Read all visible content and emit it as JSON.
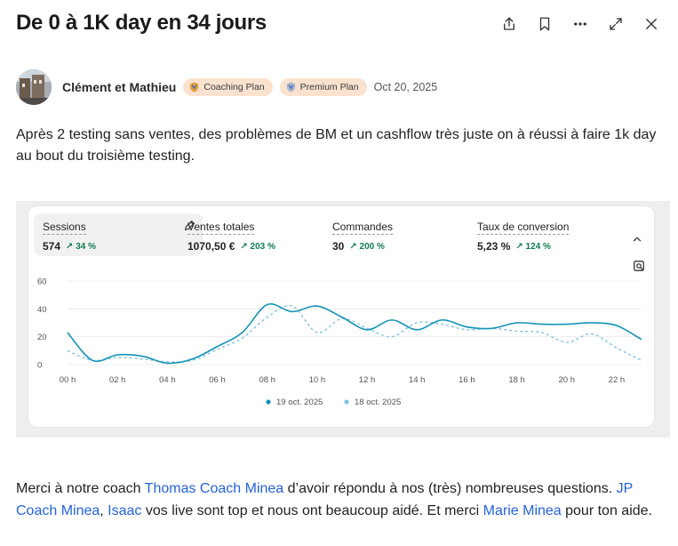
{
  "post": {
    "title": "De 0 à 1K day en 34 jours",
    "author": "Clément et Mathieu",
    "badges": [
      "Coaching Plan",
      "Premium Plan"
    ],
    "date": "Oct 20, 2025",
    "body": "Après 2 testing sans ventes, des problèmes de BM et un cashflow très juste on à réussi à faire 1k day au bout du troisième testing."
  },
  "actions": [
    "share-icon",
    "bookmark-icon",
    "more-icon",
    "expand-icon",
    "close-icon"
  ],
  "metrics": [
    {
      "label": "Sessions",
      "value": "574",
      "trend": "↗ 34 %"
    },
    {
      "label": "Ventes totales",
      "value": "1070,50 €",
      "trend": "↗ 203 %"
    },
    {
      "label": "Commandes",
      "value": "30",
      "trend": "↗ 200 %"
    },
    {
      "label": "Taux de conversion",
      "value": "5,23 %",
      "trend": "↗ 124 %"
    }
  ],
  "colors": {
    "accent": "#1592b8",
    "secondary": "#7fc3dc",
    "trend": "#107c4f",
    "badge": "#fbe2cf",
    "mention": "#2563d9"
  },
  "chart_data": {
    "type": "line",
    "ylim": [
      0,
      60
    ],
    "yticks": [
      "0",
      "20",
      "40",
      "60"
    ],
    "x": [
      "00 h",
      "01 h",
      "02 h",
      "03 h",
      "04 h",
      "05 h",
      "06 h",
      "07 h",
      "08 h",
      "09 h",
      "10 h",
      "11 h",
      "12 h",
      "13 h",
      "14 h",
      "15 h",
      "16 h",
      "17 h",
      "18 h",
      "19 h",
      "20 h",
      "21 h",
      "22 h",
      "23 h"
    ],
    "xtick_labels": [
      "00 h",
      "02 h",
      "04 h",
      "06 h",
      "08 h",
      "10 h",
      "12 h",
      "14 h",
      "16 h",
      "18 h",
      "20 h",
      "22 h"
    ],
    "grid": true,
    "legend_position": "bottom",
    "series": [
      {
        "name": "19 oct. 2025",
        "style": "solid",
        "values": [
          23,
          3,
          7,
          6,
          1,
          4,
          13,
          23,
          43,
          38,
          42,
          34,
          25,
          32,
          25,
          32,
          27,
          26,
          30,
          29,
          29,
          30,
          28,
          18
        ]
      },
      {
        "name": "18 oct. 2025",
        "style": "dashed",
        "values": [
          10,
          3,
          5,
          4,
          2,
          3,
          11,
          19,
          34,
          42,
          23,
          33,
          26,
          20,
          30,
          29,
          25,
          26,
          24,
          23,
          16,
          22,
          12,
          3
        ]
      }
    ]
  },
  "thanks": {
    "t1": "Merci à notre coach ",
    "m1": "Thomas Coach Minea",
    "t2": " d’avoir répondu à nos (très) nombreuses questions. ",
    "m2": "JP Coach Minea",
    "t3": ", ",
    "m3": "Isaac",
    "t4": " vos live sont top et nous ont beaucoup aidé. Et merci ",
    "m4": "Marie Minea",
    "t5": " pour ton aide."
  }
}
